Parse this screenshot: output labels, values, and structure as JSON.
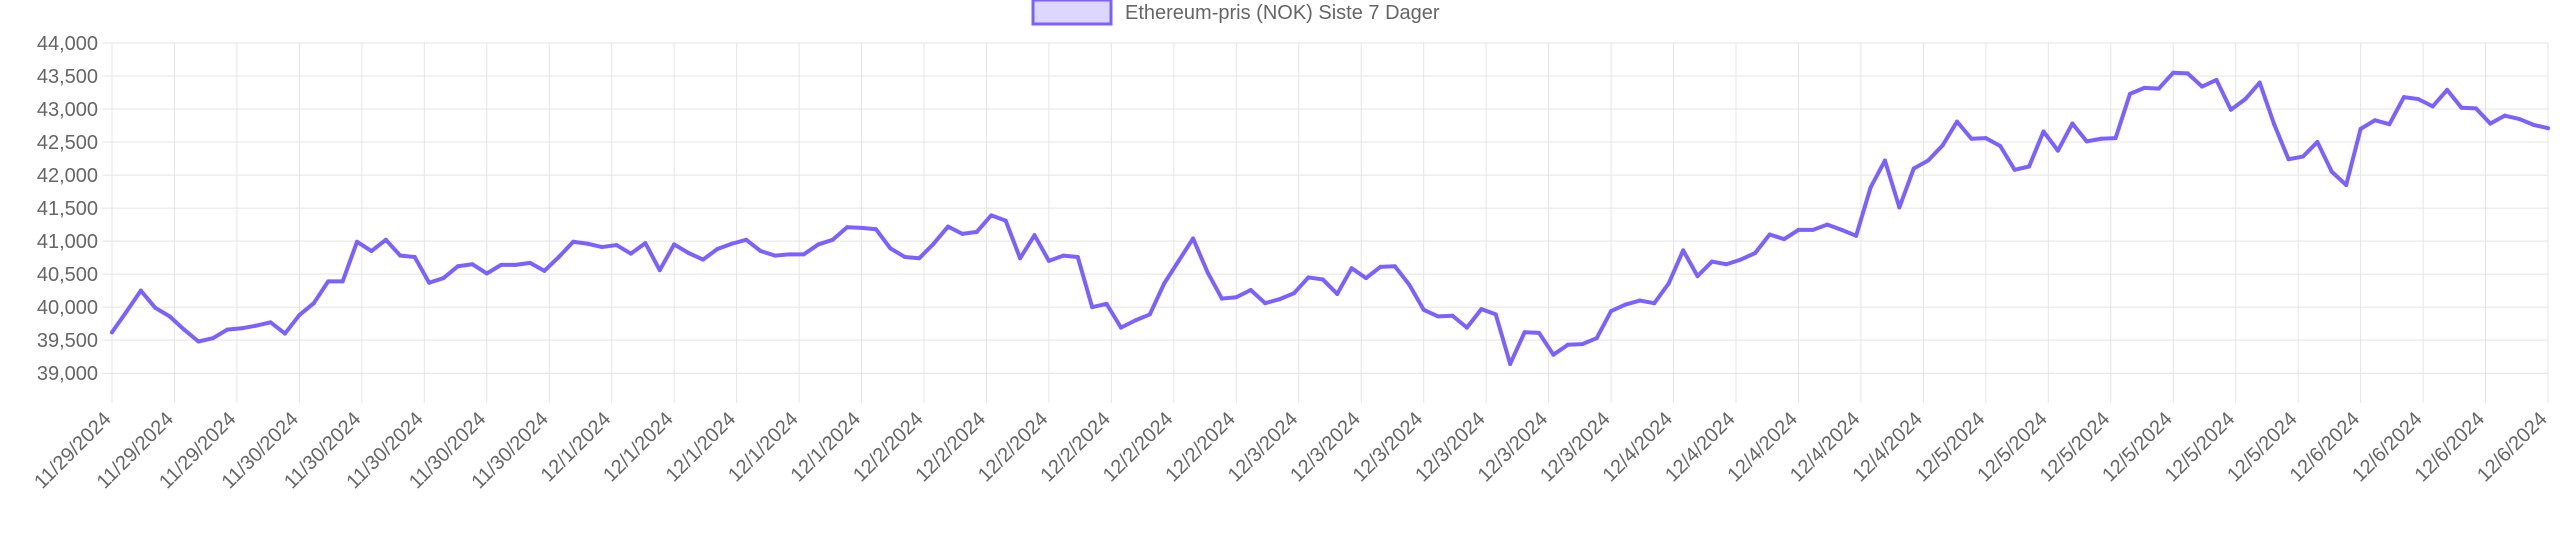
{
  "chart_data": {
    "type": "line",
    "legend": {
      "position": "top-center",
      "label": "Ethereum-pris (NOK) Siste 7 Dager"
    },
    "series": [
      {
        "name": "Ethereum-pris (NOK) Siste 7 Dager",
        "color": "#7b61ff",
        "fill": "#ddd6ff",
        "values": [
          39620,
          39930,
          40250,
          39990,
          39860,
          39660,
          39480,
          39530,
          39660,
          39680,
          39720,
          39770,
          39600,
          39880,
          40060,
          40390,
          40390,
          40990,
          40850,
          41020,
          40780,
          40760,
          40370,
          40440,
          40620,
          40650,
          40510,
          40640,
          40640,
          40670,
          40550,
          40760,
          40990,
          40960,
          40910,
          40940,
          40810,
          40970,
          40560,
          40950,
          40820,
          40720,
          40880,
          40960,
          41020,
          40850,
          40780,
          40800,
          40800,
          40950,
          41020,
          41210,
          41200,
          41180,
          40890,
          40760,
          40740,
          40960,
          41220,
          41110,
          41140,
          41390,
          41310,
          40740,
          41090,
          40700,
          40780,
          40760,
          40000,
          40050,
          39690,
          39800,
          39890,
          40360,
          40700,
          41040,
          40530,
          40130,
          40150,
          40260,
          40060,
          40120,
          40210,
          40450,
          40420,
          40200,
          40590,
          40440,
          40610,
          40620,
          40340,
          39960,
          39860,
          39870,
          39690,
          39970,
          39890,
          39140,
          39620,
          39610,
          39280,
          39430,
          39440,
          39530,
          39940,
          40040,
          40100,
          40060,
          40360,
          40860,
          40470,
          40690,
          40650,
          40720,
          40820,
          41100,
          41030,
          41170,
          41170,
          41250,
          41170,
          41080,
          41810,
          42220,
          41510,
          42100,
          42220,
          42450,
          42810,
          42550,
          42560,
          42440,
          42080,
          42130,
          42660,
          42370,
          42780,
          42510,
          42550,
          42560,
          43230,
          43320,
          43310,
          43550,
          43540,
          43340,
          43440,
          42990,
          43150,
          43400,
          42770,
          42240,
          42280,
          42500,
          42050,
          41850,
          42700,
          42830,
          42770,
          43180,
          43150,
          43040,
          43290,
          43020,
          43010,
          42780,
          42900,
          42850,
          42760,
          42710
        ]
      }
    ],
    "x_ticks": [
      "11/29/2024",
      "11/29/2024",
      "11/29/2024",
      "11/30/2024",
      "11/30/2024",
      "11/30/2024",
      "11/30/2024",
      "11/30/2024",
      "12/1/2024",
      "12/1/2024",
      "12/1/2024",
      "12/1/2024",
      "12/1/2024",
      "12/2/2024",
      "12/2/2024",
      "12/2/2024",
      "12/2/2024",
      "12/2/2024",
      "12/2/2024",
      "12/3/2024",
      "12/3/2024",
      "12/3/2024",
      "12/3/2024",
      "12/3/2024",
      "12/3/2024",
      "12/4/2024",
      "12/4/2024",
      "12/4/2024",
      "12/4/2024",
      "12/4/2024",
      "12/5/2024",
      "12/5/2024",
      "12/5/2024",
      "12/5/2024",
      "12/5/2024",
      "12/5/2024",
      "12/6/2024",
      "12/6/2024",
      "12/6/2024",
      "12/6/2024"
    ],
    "y_ticks": [
      "44,000",
      "43,500",
      "43,000",
      "42,500",
      "42,000",
      "41,500",
      "41,000",
      "40,500",
      "40,000",
      "39,500",
      "39,000"
    ],
    "ylim": [
      38700,
      44000
    ],
    "grid": true
  }
}
